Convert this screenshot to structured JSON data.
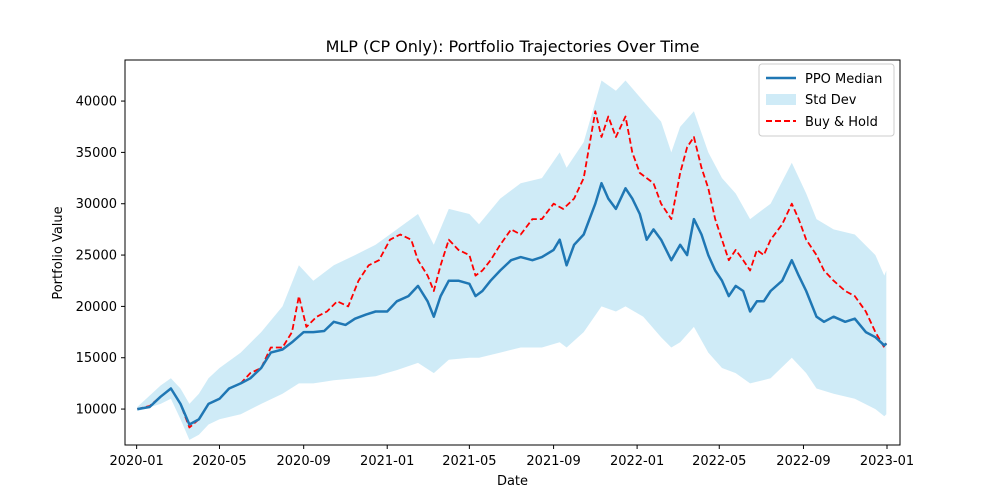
{
  "chart_data": {
    "type": "line",
    "title": "MLP (CP Only): Portfolio Trajectories Over Time",
    "xlabel": "Date",
    "ylabel": "Portfolio Value",
    "x_range": [
      "2019-12-15",
      "2023-01-20"
    ],
    "ylim": [
      6500,
      44000
    ],
    "grid": false,
    "legend_position": "top-right",
    "x_ticks": [
      "2020-01",
      "2020-05",
      "2020-09",
      "2021-01",
      "2021-05",
      "2021-09",
      "2022-01",
      "2022-05",
      "2022-09",
      "2023-01"
    ],
    "y_ticks": [
      10000,
      15000,
      20000,
      25000,
      30000,
      35000,
      40000
    ],
    "legend": [
      "PPO Median",
      "Std Dev",
      "Buy & Hold"
    ],
    "colors": {
      "median": "#1f77b4",
      "band": "#87ceeb",
      "buy_hold": "#ff0000"
    },
    "series": [
      {
        "name": "PPO Median",
        "style": "solid",
        "points": [
          [
            "2020-01-02",
            10000
          ],
          [
            "2020-01-20",
            10200
          ],
          [
            "2020-02-05",
            11200
          ],
          [
            "2020-02-20",
            12000
          ],
          [
            "2020-03-05",
            10500
          ],
          [
            "2020-03-18",
            8500
          ],
          [
            "2020-04-01",
            9000
          ],
          [
            "2020-04-15",
            10500
          ],
          [
            "2020-05-01",
            11000
          ],
          [
            "2020-05-15",
            12000
          ],
          [
            "2020-06-01",
            12500
          ],
          [
            "2020-06-15",
            13000
          ],
          [
            "2020-07-01",
            14000
          ],
          [
            "2020-07-15",
            15500
          ],
          [
            "2020-08-01",
            15800
          ],
          [
            "2020-08-15",
            16500
          ],
          [
            "2020-09-01",
            17500
          ],
          [
            "2020-09-15",
            17500
          ],
          [
            "2020-10-01",
            17600
          ],
          [
            "2020-10-15",
            18500
          ],
          [
            "2020-11-01",
            18200
          ],
          [
            "2020-11-15",
            18800
          ],
          [
            "2020-12-01",
            19200
          ],
          [
            "2020-12-15",
            19500
          ],
          [
            "2021-01-01",
            19500
          ],
          [
            "2021-01-15",
            20500
          ],
          [
            "2021-02-01",
            21000
          ],
          [
            "2021-02-15",
            22000
          ],
          [
            "2021-03-01",
            20500
          ],
          [
            "2021-03-10",
            19000
          ],
          [
            "2021-03-20",
            21000
          ],
          [
            "2021-04-01",
            22500
          ],
          [
            "2021-04-15",
            22500
          ],
          [
            "2021-05-01",
            22200
          ],
          [
            "2021-05-10",
            21000
          ],
          [
            "2021-05-20",
            21500
          ],
          [
            "2021-06-01",
            22500
          ],
          [
            "2021-06-15",
            23500
          ],
          [
            "2021-07-01",
            24500
          ],
          [
            "2021-07-15",
            24800
          ],
          [
            "2021-08-01",
            24500
          ],
          [
            "2021-08-15",
            24800
          ],
          [
            "2021-09-01",
            25500
          ],
          [
            "2021-09-10",
            26500
          ],
          [
            "2021-09-20",
            24000
          ],
          [
            "2021-10-01",
            26000
          ],
          [
            "2021-10-15",
            27000
          ],
          [
            "2021-11-01",
            30000
          ],
          [
            "2021-11-10",
            32000
          ],
          [
            "2021-11-20",
            30500
          ],
          [
            "2021-12-01",
            29500
          ],
          [
            "2021-12-15",
            31500
          ],
          [
            "2021-12-25",
            30500
          ],
          [
            "2022-01-05",
            29000
          ],
          [
            "2022-01-15",
            26500
          ],
          [
            "2022-01-25",
            27500
          ],
          [
            "2022-02-05",
            26500
          ],
          [
            "2022-02-20",
            24500
          ],
          [
            "2022-03-05",
            26000
          ],
          [
            "2022-03-15",
            25000
          ],
          [
            "2022-03-25",
            28500
          ],
          [
            "2022-04-05",
            27000
          ],
          [
            "2022-04-15",
            25000
          ],
          [
            "2022-04-25",
            23500
          ],
          [
            "2022-05-05",
            22500
          ],
          [
            "2022-05-15",
            21000
          ],
          [
            "2022-05-25",
            22000
          ],
          [
            "2022-06-05",
            21500
          ],
          [
            "2022-06-15",
            19500
          ],
          [
            "2022-06-25",
            20500
          ],
          [
            "2022-07-05",
            20500
          ],
          [
            "2022-07-15",
            21500
          ],
          [
            "2022-08-01",
            22500
          ],
          [
            "2022-08-15",
            24500
          ],
          [
            "2022-08-25",
            23000
          ],
          [
            "2022-09-05",
            21500
          ],
          [
            "2022-09-20",
            19000
          ],
          [
            "2022-10-01",
            18500
          ],
          [
            "2022-10-15",
            19000
          ],
          [
            "2022-11-01",
            18500
          ],
          [
            "2022-11-15",
            18800
          ],
          [
            "2022-12-01",
            17500
          ],
          [
            "2022-12-15",
            17000
          ],
          [
            "2022-12-28",
            16200
          ],
          [
            "2022-12-31",
            16400
          ]
        ]
      },
      {
        "name": "Buy & Hold",
        "style": "dashed",
        "points": [
          [
            "2020-01-02",
            10000
          ],
          [
            "2020-01-20",
            10300
          ],
          [
            "2020-02-05",
            11200
          ],
          [
            "2020-02-20",
            12000
          ],
          [
            "2020-03-05",
            10500
          ],
          [
            "2020-03-18",
            8200
          ],
          [
            "2020-04-01",
            9000
          ],
          [
            "2020-04-15",
            10500
          ],
          [
            "2020-05-01",
            11000
          ],
          [
            "2020-05-15",
            12000
          ],
          [
            "2020-06-01",
            12500
          ],
          [
            "2020-06-15",
            13500
          ],
          [
            "2020-07-01",
            14000
          ],
          [
            "2020-07-15",
            16000
          ],
          [
            "2020-08-01",
            16000
          ],
          [
            "2020-08-15",
            17500
          ],
          [
            "2020-08-25",
            21000
          ],
          [
            "2020-09-05",
            18000
          ],
          [
            "2020-09-20",
            19000
          ],
          [
            "2020-10-05",
            19500
          ],
          [
            "2020-10-20",
            20500
          ],
          [
            "2020-11-05",
            20000
          ],
          [
            "2020-11-20",
            22500
          ],
          [
            "2020-12-05",
            24000
          ],
          [
            "2020-12-20",
            24500
          ],
          [
            "2021-01-05",
            26500
          ],
          [
            "2021-01-20",
            27000
          ],
          [
            "2021-02-05",
            26500
          ],
          [
            "2021-02-15",
            24500
          ],
          [
            "2021-03-01",
            23000
          ],
          [
            "2021-03-10",
            21500
          ],
          [
            "2021-03-20",
            24000
          ],
          [
            "2021-04-01",
            26500
          ],
          [
            "2021-04-15",
            25500
          ],
          [
            "2021-05-01",
            25000
          ],
          [
            "2021-05-10",
            23000
          ],
          [
            "2021-05-20",
            23500
          ],
          [
            "2021-06-01",
            24500
          ],
          [
            "2021-06-15",
            26000
          ],
          [
            "2021-07-01",
            27500
          ],
          [
            "2021-07-15",
            27000
          ],
          [
            "2021-08-01",
            28500
          ],
          [
            "2021-08-15",
            28500
          ],
          [
            "2021-09-01",
            30000
          ],
          [
            "2021-09-15",
            29500
          ],
          [
            "2021-10-01",
            30500
          ],
          [
            "2021-10-15",
            32500
          ],
          [
            "2021-11-01",
            39000
          ],
          [
            "2021-11-10",
            36500
          ],
          [
            "2021-11-20",
            38500
          ],
          [
            "2021-12-01",
            36500
          ],
          [
            "2021-12-15",
            38500
          ],
          [
            "2021-12-25",
            35000
          ],
          [
            "2022-01-05",
            33000
          ],
          [
            "2022-01-15",
            32500
          ],
          [
            "2022-01-25",
            32000
          ],
          [
            "2022-02-05",
            30000
          ],
          [
            "2022-02-20",
            28500
          ],
          [
            "2022-03-05",
            33000
          ],
          [
            "2022-03-15",
            35500
          ],
          [
            "2022-03-25",
            36500
          ],
          [
            "2022-04-05",
            33500
          ],
          [
            "2022-04-15",
            31500
          ],
          [
            "2022-04-25",
            28500
          ],
          [
            "2022-05-05",
            26500
          ],
          [
            "2022-05-15",
            24500
          ],
          [
            "2022-05-25",
            25500
          ],
          [
            "2022-06-05",
            24500
          ],
          [
            "2022-06-15",
            23500
          ],
          [
            "2022-06-25",
            25500
          ],
          [
            "2022-07-05",
            25000
          ],
          [
            "2022-07-15",
            26500
          ],
          [
            "2022-08-01",
            28000
          ],
          [
            "2022-08-15",
            30000
          ],
          [
            "2022-08-25",
            28500
          ],
          [
            "2022-09-05",
            26500
          ],
          [
            "2022-09-20",
            25000
          ],
          [
            "2022-10-01",
            23500
          ],
          [
            "2022-10-15",
            22500
          ],
          [
            "2022-11-01",
            21500
          ],
          [
            "2022-11-15",
            21000
          ],
          [
            "2022-12-01",
            19500
          ],
          [
            "2022-12-15",
            17500
          ],
          [
            "2022-12-28",
            16000
          ],
          [
            "2022-12-31",
            16400
          ]
        ]
      }
    ],
    "band": {
      "name": "Std Dev",
      "points": [
        [
          "2020-01-02",
          9800,
          10200
        ],
        [
          "2020-02-05",
          10500,
          12300
        ],
        [
          "2020-02-20",
          11000,
          13000
        ],
        [
          "2020-03-05",
          9000,
          12000
        ],
        [
          "2020-03-18",
          7000,
          10500
        ],
        [
          "2020-04-01",
          7500,
          11500
        ],
        [
          "2020-04-15",
          8500,
          13000
        ],
        [
          "2020-05-01",
          9000,
          14000
        ],
        [
          "2020-06-01",
          9500,
          15500
        ],
        [
          "2020-07-01",
          10500,
          17500
        ],
        [
          "2020-08-01",
          11500,
          20000
        ],
        [
          "2020-08-25",
          12500,
          24000
        ],
        [
          "2020-09-15",
          12500,
          22500
        ],
        [
          "2020-10-15",
          12800,
          24000
        ],
        [
          "2020-11-15",
          13000,
          25000
        ],
        [
          "2020-12-15",
          13200,
          26000
        ],
        [
          "2021-01-15",
          13800,
          27500
        ],
        [
          "2021-02-15",
          14500,
          29000
        ],
        [
          "2021-03-10",
          13500,
          26000
        ],
        [
          "2021-04-01",
          14800,
          29500
        ],
        [
          "2021-05-01",
          15000,
          29000
        ],
        [
          "2021-05-15",
          15000,
          28000
        ],
        [
          "2021-06-15",
          15500,
          30500
        ],
        [
          "2021-07-15",
          16000,
          32000
        ],
        [
          "2021-08-15",
          16000,
          32500
        ],
        [
          "2021-09-10",
          16500,
          35000
        ],
        [
          "2021-09-20",
          16000,
          33500
        ],
        [
          "2021-10-15",
          17500,
          36000
        ],
        [
          "2021-11-10",
          20000,
          42000
        ],
        [
          "2021-12-01",
          19500,
          41000
        ],
        [
          "2021-12-15",
          20000,
          42000
        ],
        [
          "2022-01-10",
          19000,
          40000
        ],
        [
          "2022-02-05",
          17000,
          38000
        ],
        [
          "2022-02-20",
          16000,
          35000
        ],
        [
          "2022-03-05",
          16500,
          37500
        ],
        [
          "2022-03-25",
          18000,
          39000
        ],
        [
          "2022-04-15",
          15500,
          35000
        ],
        [
          "2022-05-05",
          14000,
          32500
        ],
        [
          "2022-05-25",
          13500,
          31000
        ],
        [
          "2022-06-15",
          12500,
          28500
        ],
        [
          "2022-07-15",
          13000,
          30000
        ],
        [
          "2022-08-15",
          15000,
          34000
        ],
        [
          "2022-09-05",
          13500,
          31000
        ],
        [
          "2022-09-20",
          12000,
          28500
        ],
        [
          "2022-10-15",
          11500,
          27500
        ],
        [
          "2022-11-15",
          11000,
          27000
        ],
        [
          "2022-12-15",
          10000,
          25000
        ],
        [
          "2022-12-28",
          9300,
          23000
        ],
        [
          "2022-12-31",
          9500,
          23500
        ]
      ]
    }
  }
}
